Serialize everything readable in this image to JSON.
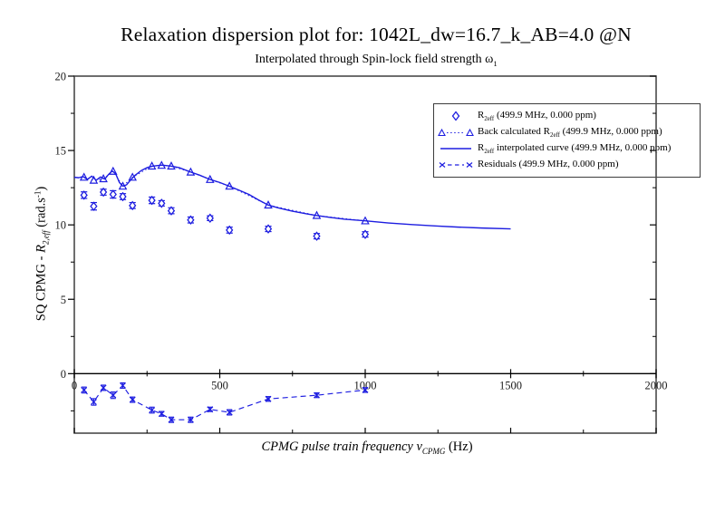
{
  "chart_data": {
    "type": "line",
    "title": "Relaxation dispersion plot for: 1042L_dw=16.7_k_AB=4.0 @N",
    "subtitle_parts": {
      "pre": "Interpolated through Spin-lock field strength ",
      "symbol": "ω",
      "sub": "1"
    },
    "xlabel_parts": {
      "italic": "CPMG pulse train frequency ",
      "symbol": "ν",
      "sub": "CPMG",
      "post": " (Hz)"
    },
    "ylabel_parts": {
      "pre": "SQ CPMG - ",
      "symbol": "R",
      "sub": "2,eff",
      "mid": " (rad.s",
      "sup": "-1",
      "post": ")"
    },
    "xlim": [
      0,
      2000
    ],
    "ylim": [
      -4,
      20
    ],
    "x_major_ticks": [
      0,
      500,
      1000,
      1500,
      2000
    ],
    "x_minor_ticks": [
      250,
      750,
      1250,
      1750
    ],
    "y_major_ticks": [
      0,
      5,
      10,
      15,
      20
    ],
    "y_minor_ticks": [
      -2.5,
      2.5,
      7.5,
      12.5,
      17.5
    ],
    "grid": "off",
    "legend_position": "upper-right",
    "colors": {
      "data": "#1d1de0",
      "frame": "#4a4a4a",
      "axis": "#000000",
      "text": "#1a1a1a"
    },
    "legend": {
      "entries": [
        {
          "marker": "diamond",
          "pre": "R",
          "sub": "2eff",
          "post": " (499.9 MHz, 0.000 ppm)"
        },
        {
          "marker": "triangle-dotted",
          "pre": "Back calculated R",
          "sub": "2eff",
          "post": " (499.9 MHz, 0.000 ppm)"
        },
        {
          "marker": "solid-line",
          "pre": "R",
          "sub": "2eff",
          "post": " interpolated curve (499.9 MHz, 0.000 ppm)"
        },
        {
          "marker": "x-dashed",
          "pre": "Residuals (499.9 MHz, 0.000 ppm)",
          "sub": "",
          "post": ""
        }
      ]
    },
    "series": [
      {
        "id": "r2eff",
        "label": "R2eff (499.9 MHz, 0.000 ppm)",
        "marker": "diamond",
        "line": "none",
        "x": [
          33.3,
          66.7,
          100,
          133.3,
          166.7,
          200,
          266.7,
          300,
          333.3,
          400,
          466.7,
          533.3,
          666.7,
          833.3,
          1000
        ],
        "y": [
          12.0,
          11.25,
          12.2,
          12.05,
          11.9,
          11.3,
          11.65,
          11.45,
          10.95,
          10.33,
          10.45,
          9.65,
          9.73,
          9.24,
          9.36
        ],
        "yerr": [
          0.22,
          0.25,
          0.2,
          0.25,
          0.2,
          0.2,
          0.22,
          0.18,
          0.2,
          0.2,
          0.16,
          0.2,
          0.18,
          0.18,
          0.18
        ]
      },
      {
        "id": "back_calculated",
        "label": "Back calculated R2eff (499.9 MHz, 0.000 ppm)",
        "marker": "triangle",
        "line": "dotted",
        "x": [
          33.3,
          66.7,
          100,
          133.3,
          166.7,
          200,
          266.7,
          300,
          333.3,
          400,
          466.7,
          533.3,
          666.7,
          833.3,
          1000
        ],
        "y": [
          13.2,
          13.0,
          13.1,
          13.6,
          12.6,
          13.2,
          13.95,
          14.0,
          13.95,
          13.55,
          13.05,
          12.6,
          11.33,
          10.63,
          10.27
        ]
      },
      {
        "id": "interpolated",
        "label": "R2eff interpolated curve (499.9 MHz, 0.000 ppm)",
        "marker": "none",
        "line": "solid",
        "x": [
          0,
          15,
          30,
          45,
          60,
          75,
          90,
          105,
          118,
          130,
          142,
          155,
          167,
          180,
          195,
          210,
          230,
          250,
          270,
          300,
          330,
          360,
          400,
          430,
          467,
          500,
          533,
          570,
          600,
          633,
          667,
          700,
          750,
          800,
          833,
          880,
          930,
          1000,
          1080,
          1160,
          1240,
          1320,
          1400,
          1500
        ],
        "y": [
          13.2,
          13.17,
          13.25,
          13.05,
          13.28,
          13.0,
          13.22,
          13.08,
          13.4,
          13.62,
          13.45,
          12.85,
          12.6,
          12.7,
          13.05,
          13.35,
          13.65,
          13.85,
          13.95,
          14.02,
          13.96,
          13.85,
          13.55,
          13.35,
          13.05,
          12.85,
          12.6,
          12.3,
          12.05,
          11.68,
          11.33,
          11.15,
          10.92,
          10.74,
          10.63,
          10.5,
          10.38,
          10.27,
          10.13,
          10.02,
          9.93,
          9.85,
          9.79,
          9.73
        ]
      },
      {
        "id": "residuals",
        "label": "Residuals (499.9 MHz, 0.000 ppm)",
        "marker": "x",
        "line": "dashed",
        "x": [
          33.3,
          66.7,
          100,
          133.3,
          166.7,
          200,
          266.7,
          300,
          333.3,
          400,
          466.7,
          533.3,
          666.7,
          833.3,
          1000
        ],
        "y": [
          -1.1,
          -1.9,
          -0.95,
          -1.45,
          -0.8,
          -1.75,
          -2.45,
          -2.7,
          -3.1,
          -3.1,
          -2.4,
          -2.6,
          -1.7,
          -1.45,
          -1.1
        ],
        "yerr": [
          0.2,
          0.22,
          0.18,
          0.22,
          0.18,
          0.18,
          0.2,
          0.16,
          0.18,
          0.18,
          0.15,
          0.18,
          0.16,
          0.16,
          0.16
        ]
      }
    ]
  }
}
